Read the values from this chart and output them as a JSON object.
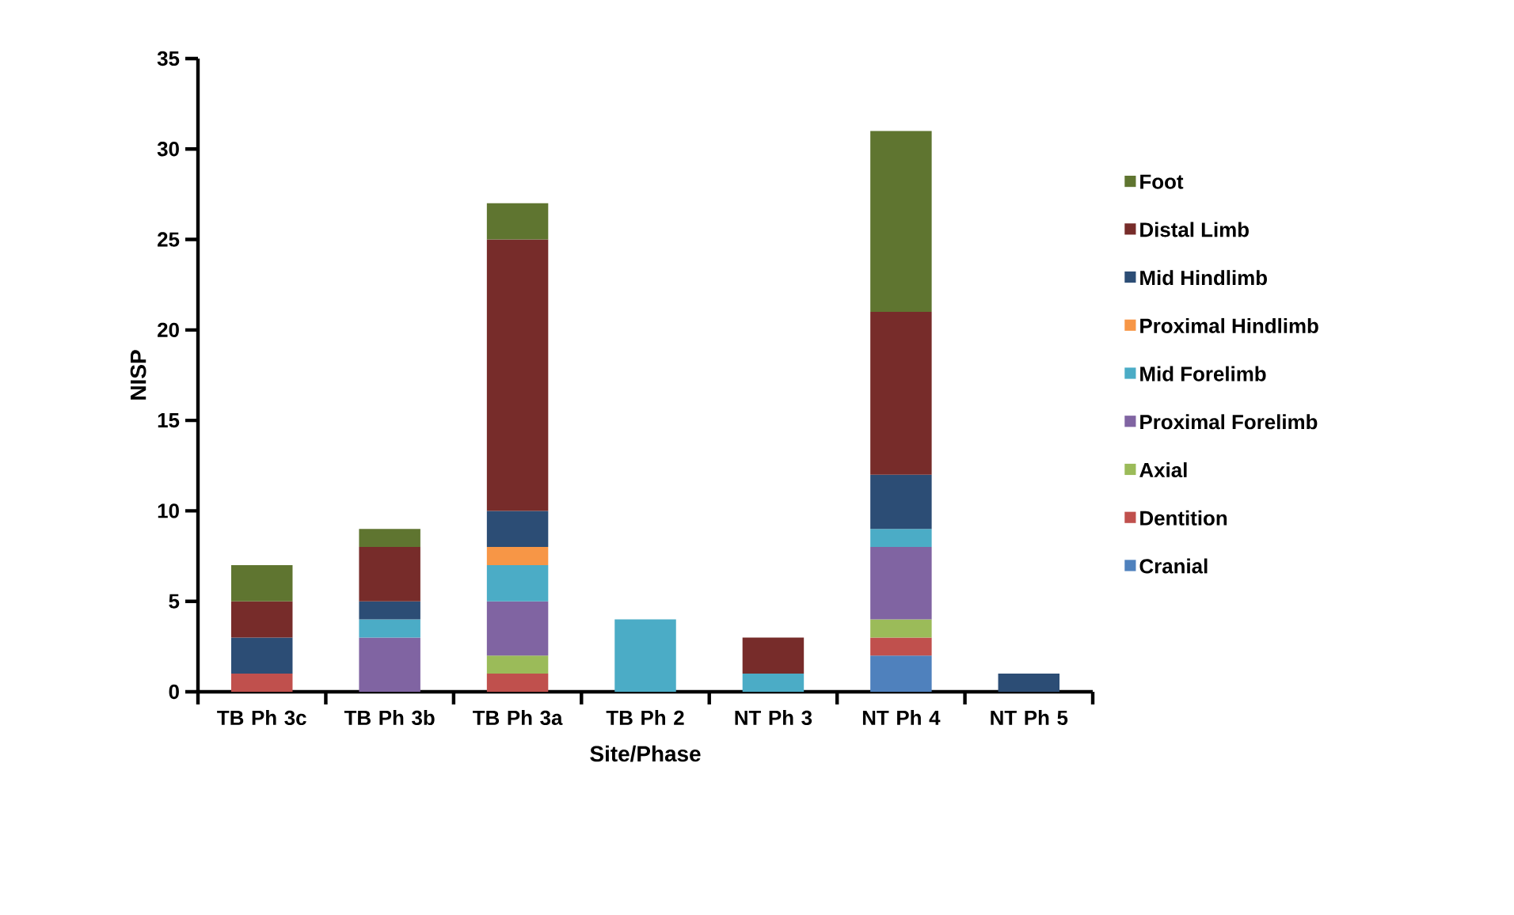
{
  "chart_data": {
    "type": "bar",
    "stacked": true,
    "xlabel": "Site/Phase",
    "ylabel": "NISP",
    "categories": [
      "TB Ph 3c",
      "TB Ph 3b",
      "TB Ph 3a",
      "TB Ph 2",
      "NT Ph 3",
      "NT Ph 4",
      "NT Ph 5"
    ],
    "series": [
      {
        "name": "Cranial",
        "color": "#4f81bd",
        "values": [
          null,
          null,
          null,
          null,
          null,
          2,
          null
        ]
      },
      {
        "name": "Dentition",
        "color": "#c0504d",
        "values": [
          1,
          null,
          1,
          null,
          null,
          1,
          null
        ]
      },
      {
        "name": "Axial",
        "color": "#9bbb59",
        "values": [
          null,
          null,
          1,
          null,
          null,
          1,
          null
        ]
      },
      {
        "name": "Proximal Forelimb",
        "color": "#8064a2",
        "values": [
          null,
          3,
          3,
          null,
          null,
          4,
          null
        ]
      },
      {
        "name": "Mid Forelimb",
        "color": "#4bacc6",
        "values": [
          null,
          1,
          2,
          4,
          1,
          1,
          null
        ]
      },
      {
        "name": "Proximal Hindlimb",
        "color": "#f79646",
        "values": [
          null,
          null,
          1,
          null,
          null,
          null,
          null
        ]
      },
      {
        "name": "Mid Hindlimb",
        "color": "#2c4d75",
        "values": [
          2,
          1,
          2,
          null,
          null,
          3,
          1
        ]
      },
      {
        "name": "Distal Limb",
        "color": "#772c2a",
        "values": [
          2,
          3,
          15,
          null,
          2,
          9,
          null
        ]
      },
      {
        "name": "Foot",
        "color": "#5f7530",
        "values": [
          2,
          1,
          2,
          null,
          null,
          10,
          null
        ]
      }
    ],
    "ylim": [
      0,
      35
    ],
    "yticks": [
      0,
      5,
      10,
      15,
      20,
      25,
      30,
      35
    ],
    "legend": "right"
  }
}
